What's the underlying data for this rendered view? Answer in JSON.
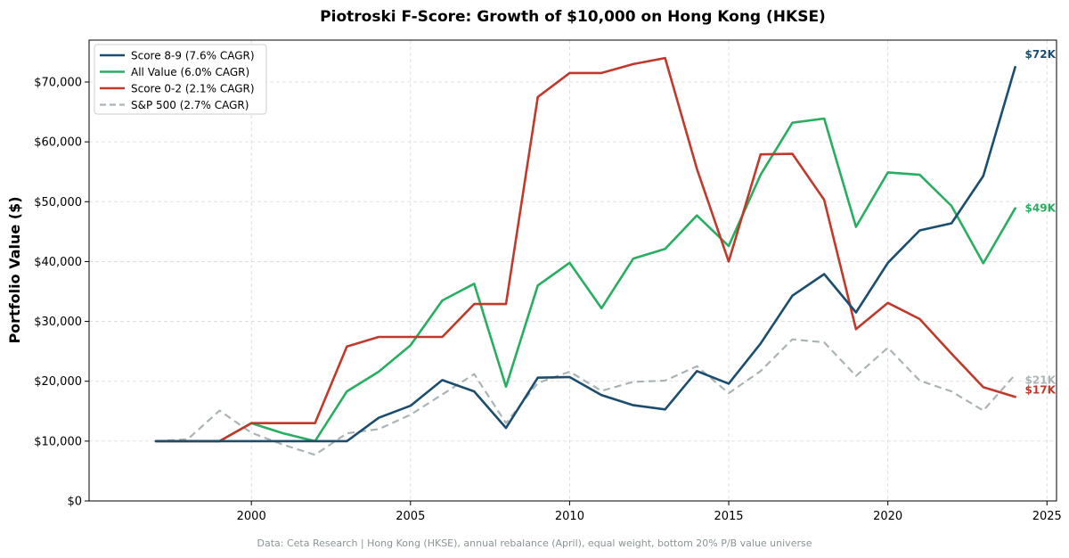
{
  "chart_data": {
    "type": "line",
    "title": "Piotroski F-Score: Growth of $10,000 on Hong Kong (HKSE)",
    "ylabel": "Portfolio Value ($)",
    "xlabel": "",
    "caption": "Data: Ceta Research | Hong Kong (HKSE), annual rebalance (April), equal weight, bottom 20% P/B value universe",
    "xlim": [
      1994.9,
      2025.3
    ],
    "ylim": [
      0,
      77000
    ],
    "x_ticks": [
      2000,
      2005,
      2010,
      2015,
      2020,
      2025
    ],
    "y_ticks": [
      0,
      10000,
      20000,
      30000,
      40000,
      50000,
      60000,
      70000
    ],
    "y_tick_labels": [
      "$0",
      "$10,000",
      "$20,000",
      "$30,000",
      "$40,000",
      "$50,000",
      "$60,000",
      "$70,000"
    ],
    "grid": true,
    "legend_position": "top-left",
    "x": [
      1997,
      1998,
      1999,
      2000,
      2001,
      2002,
      2003,
      2004,
      2005,
      2006,
      2007,
      2008,
      2009,
      2010,
      2011,
      2012,
      2013,
      2014,
      2015,
      2016,
      2017,
      2018,
      2019,
      2020,
      2021,
      2022,
      2023,
      2024
    ],
    "series": [
      {
        "name": "Score 8-9 (7.6% CAGR)",
        "color": "#1a4d6e",
        "dashed": false,
        "end_label": "$72K",
        "values": [
          10000,
          10000,
          10000,
          10000,
          10000,
          10000,
          10000,
          13900,
          15900,
          20200,
          18300,
          12200,
          20600,
          20700,
          17700,
          16000,
          15300,
          21700,
          19600,
          26300,
          34300,
          37900,
          31500,
          39800,
          45200,
          46400,
          54300,
          72500
        ]
      },
      {
        "name": "All Value (6.0% CAGR)",
        "color": "#27ae60",
        "dashed": false,
        "end_label": "$49K",
        "values": [
          10000,
          10000,
          10000,
          13000,
          11300,
          10000,
          18300,
          21600,
          26000,
          33500,
          36300,
          19100,
          36000,
          39800,
          32200,
          40500,
          42100,
          47700,
          42600,
          54500,
          63200,
          63900,
          45800,
          54900,
          54500,
          49300,
          39700,
          48900
        ]
      },
      {
        "name": "Score 0-2 (2.1% CAGR)",
        "color": "#c0392b",
        "dashed": false,
        "end_label": "$17K",
        "values": [
          10000,
          10000,
          10000,
          13000,
          13000,
          13000,
          25800,
          27400,
          27400,
          27400,
          32900,
          32900,
          67500,
          71500,
          71500,
          73000,
          74000,
          55500,
          40000,
          57900,
          58000,
          50300,
          28700,
          33100,
          30400,
          24600,
          19000,
          17400
        ]
      },
      {
        "name": "S&P 500 (2.7% CAGR)",
        "color": "#aab4b6",
        "dashed": true,
        "end_label": "$21K",
        "values": [
          10000,
          10300,
          15100,
          11400,
          9400,
          7700,
          11300,
          12000,
          14400,
          17800,
          21200,
          13000,
          19700,
          21600,
          18400,
          19900,
          20100,
          22500,
          18000,
          21700,
          27000,
          26500,
          20900,
          25600,
          20100,
          18300,
          15100,
          21100
        ]
      }
    ]
  }
}
